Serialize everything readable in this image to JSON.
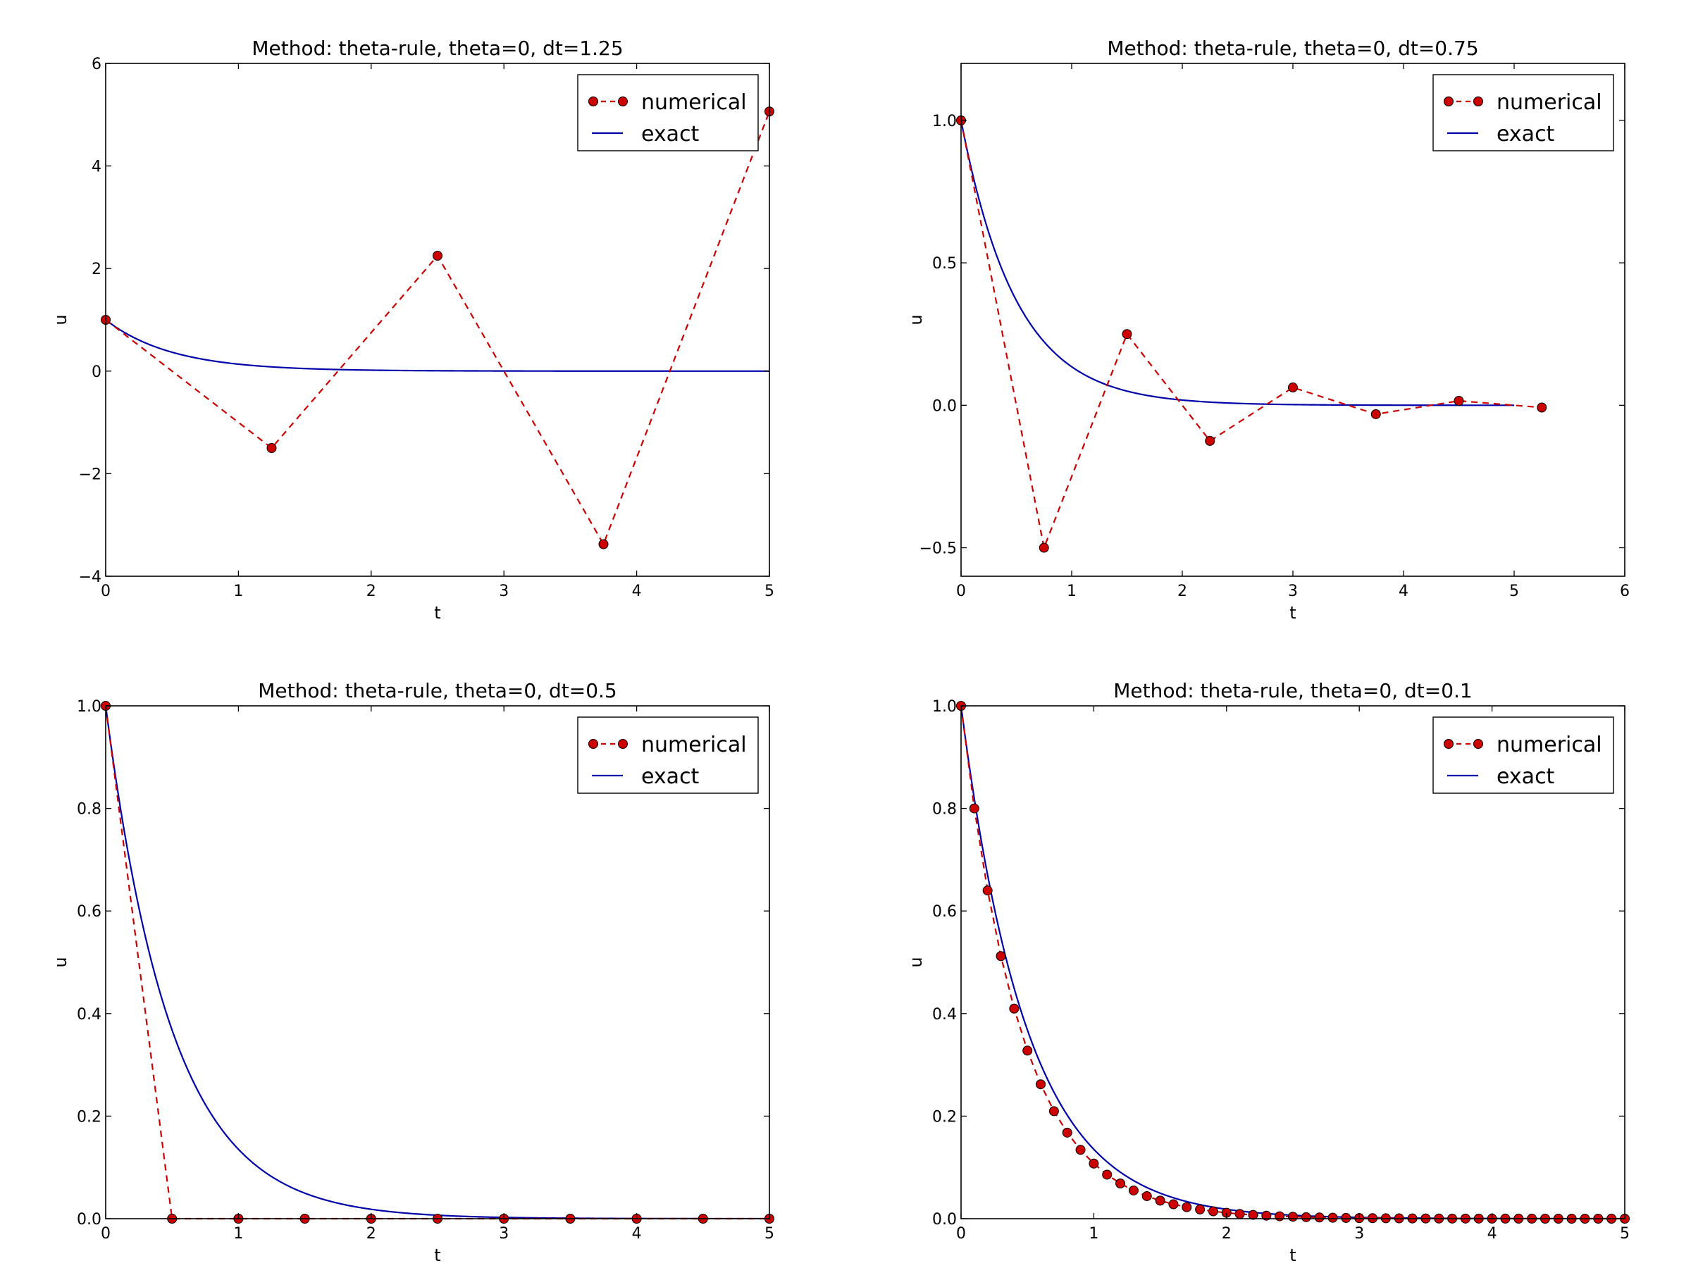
{
  "chart_data": [
    {
      "type": "line",
      "title": "Method: theta-rule, theta=0, dt=1.25",
      "xlabel": "t",
      "ylabel": "u",
      "xlim": [
        0,
        5
      ],
      "ylim": [
        -4,
        6
      ],
      "xticks": [
        0,
        1,
        2,
        3,
        4,
        5
      ],
      "xtick_labels": [
        "0",
        "1",
        "2",
        "3",
        "4",
        "5"
      ],
      "yticks": [
        -4,
        -2,
        0,
        2,
        4,
        6
      ],
      "ytick_labels": [
        "−4",
        "−2",
        "0",
        "2",
        "4",
        "6"
      ],
      "legend": "top-right",
      "series": [
        {
          "name": "numerical",
          "style": "dashed-markers",
          "color": "#cc0000",
          "x": [
            0,
            1.25,
            2.5,
            3.75,
            5.0
          ],
          "y": [
            1.0,
            -1.5,
            2.25,
            -3.375,
            5.0625
          ]
        },
        {
          "name": "exact",
          "style": "solid",
          "color": "#0000aa",
          "function": "exp(-2t)",
          "t_end": 5
        }
      ]
    },
    {
      "type": "line",
      "title": "Method: theta-rule, theta=0, dt=0.75",
      "xlabel": "t",
      "ylabel": "u",
      "xlim": [
        0,
        6
      ],
      "ylim": [
        -0.6,
        1.2
      ],
      "xticks": [
        0,
        1,
        2,
        3,
        4,
        5,
        6
      ],
      "xtick_labels": [
        "0",
        "1",
        "2",
        "3",
        "4",
        "5",
        "6"
      ],
      "yticks": [
        -0.5,
        0.0,
        0.5,
        1.0
      ],
      "ytick_labels": [
        "−0.5",
        "0.0",
        "0.5",
        "1.0"
      ],
      "legend": "top-right",
      "series": [
        {
          "name": "numerical",
          "style": "dashed-markers",
          "color": "#cc0000",
          "x": [
            0,
            0.75,
            1.5,
            2.25,
            3.0,
            3.75,
            4.5,
            5.25
          ],
          "y": [
            1.0,
            -0.5,
            0.25,
            -0.125,
            0.0625,
            -0.03125,
            0.015625,
            -0.0078125
          ]
        },
        {
          "name": "exact",
          "style": "solid",
          "color": "#0000aa",
          "function": "exp(-2t)",
          "t_end": 5
        }
      ]
    },
    {
      "type": "line",
      "title": "Method: theta-rule, theta=0, dt=0.5",
      "xlabel": "t",
      "ylabel": "u",
      "xlim": [
        0,
        5
      ],
      "ylim": [
        0,
        1.0
      ],
      "xticks": [
        0,
        1,
        2,
        3,
        4,
        5
      ],
      "xtick_labels": [
        "0",
        "1",
        "2",
        "3",
        "4",
        "5"
      ],
      "yticks": [
        0.0,
        0.2,
        0.4,
        0.6,
        0.8,
        1.0
      ],
      "ytick_labels": [
        "0.0",
        "0.2",
        "0.4",
        "0.6",
        "0.8",
        "1.0"
      ],
      "legend": "top-right",
      "series": [
        {
          "name": "numerical",
          "style": "dashed-markers",
          "color": "#cc0000",
          "x": [
            0,
            0.5,
            1.0,
            1.5,
            2.0,
            2.5,
            3.0,
            3.5,
            4.0,
            4.5,
            5.0
          ],
          "y": [
            1.0,
            0,
            0,
            0,
            0,
            0,
            0,
            0,
            0,
            0,
            0
          ]
        },
        {
          "name": "exact",
          "style": "solid",
          "color": "#0000aa",
          "function": "exp(-2t)",
          "t_end": 5
        }
      ]
    },
    {
      "type": "line",
      "title": "Method: theta-rule, theta=0, dt=0.1",
      "xlabel": "t",
      "ylabel": "u",
      "xlim": [
        0,
        5
      ],
      "ylim": [
        0,
        1.0
      ],
      "xticks": [
        0,
        1,
        2,
        3,
        4,
        5
      ],
      "xtick_labels": [
        "0",
        "1",
        "2",
        "3",
        "4",
        "5"
      ],
      "yticks": [
        0.0,
        0.2,
        0.4,
        0.6,
        0.8,
        1.0
      ],
      "ytick_labels": [
        "0.0",
        "0.2",
        "0.4",
        "0.6",
        "0.8",
        "1.0"
      ],
      "legend": "top-right",
      "series": [
        {
          "name": "numerical",
          "style": "dashed-markers",
          "color": "#cc0000",
          "x": [
            0,
            0.1,
            0.2,
            0.3,
            0.4,
            0.5,
            0.6,
            0.7,
            0.8,
            0.9,
            1.0,
            1.1,
            1.2,
            1.3,
            1.4,
            1.5,
            1.6,
            1.7,
            1.8,
            1.9,
            2.0,
            2.1,
            2.2,
            2.3,
            2.4,
            2.5,
            2.6,
            2.7,
            2.8,
            2.9,
            3.0,
            3.1,
            3.2,
            3.3,
            3.4,
            3.5,
            3.6,
            3.7,
            3.8,
            3.9,
            4.0,
            4.1,
            4.2,
            4.3,
            4.4,
            4.5,
            4.6,
            4.7,
            4.8,
            4.9,
            5.0
          ],
          "y": [
            1.0,
            0.8,
            0.64,
            0.512,
            0.4096,
            0.3277,
            0.2621,
            0.2097,
            0.1678,
            0.1342,
            0.1074,
            0.0859,
            0.0687,
            0.055,
            0.044,
            0.0352,
            0.0281,
            0.0225,
            0.018,
            0.0144,
            0.0115,
            0.0092,
            0.0074,
            0.0059,
            0.0047,
            0.0038,
            0.003,
            0.0024,
            0.0019,
            0.0015,
            0.0012,
            0.001,
            0.0008,
            0.0006,
            0.0005,
            0.0004,
            0.0003,
            0.0002,
            0.0002,
            0.0002,
            0.0001,
            0.0001,
            0.0001,
            0.0001,
            0,
            0,
            0,
            0,
            0,
            0,
            0
          ]
        },
        {
          "name": "exact",
          "style": "solid",
          "color": "#0000aa",
          "function": "exp(-2t)",
          "t_end": 5
        }
      ]
    }
  ]
}
